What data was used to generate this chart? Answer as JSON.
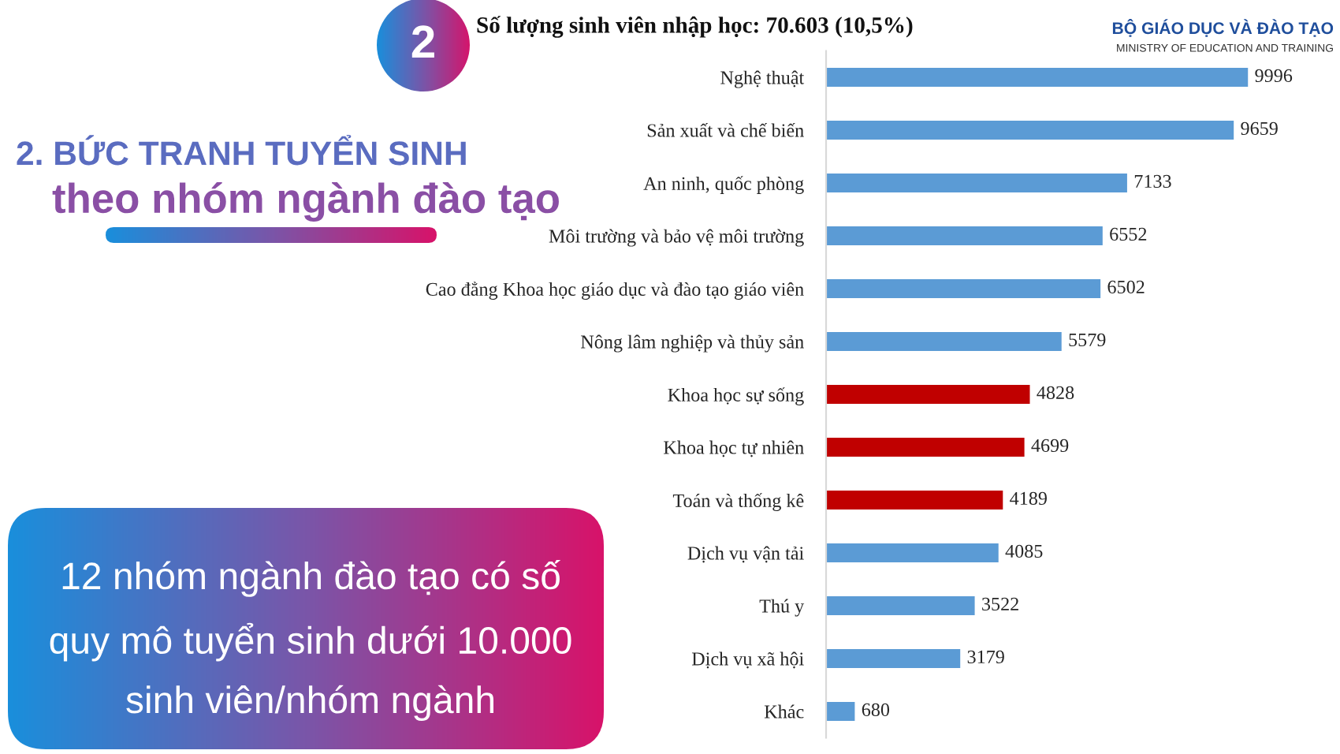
{
  "chart_data": {
    "type": "bar",
    "orientation": "horizontal",
    "title": "Số lượng sinh viên nhập học: 70.603 (10,5%)",
    "categories": [
      "Nghệ thuật",
      "Sản xuất và chế biến",
      "An ninh, quốc phòng",
      "Môi trường và bảo vệ môi trường",
      "Cao đẳng Khoa học giáo dục và đào tạo giáo viên",
      "Nông lâm nghiệp và thủy sản",
      "Khoa học sự sống",
      "Khoa học tự nhiên",
      "Toán và thống kê",
      "Dịch vụ vận tải",
      "Thú y",
      "Dịch vụ xã hội",
      "Khác"
    ],
    "values": [
      9996,
      9659,
      7133,
      6552,
      6502,
      5579,
      4828,
      4699,
      4189,
      4085,
      3522,
      3179,
      680
    ],
    "colors": [
      "#5b9bd5",
      "#5b9bd5",
      "#5b9bd5",
      "#5b9bd5",
      "#5b9bd5",
      "#5b9bd5",
      "#c00000",
      "#c00000",
      "#c00000",
      "#5b9bd5",
      "#5b9bd5",
      "#5b9bd5",
      "#5b9bd5"
    ],
    "tick_labels": "y",
    "data_labels": true,
    "grid": false,
    "annotations": [
      "2",
      "2. BỨC TRANH TUYỂN SINH",
      "theo nhóm ngành đào tạo",
      "12 nhóm ngành đào tạo có số\nquy mô tuyển sinh dưới 10.000\nsinh viên/nhóm ngành",
      "BỘ GIÁO DỤC VÀ ĐÀO TẠO",
      "MINISTRY OF EDUCATION AND TRAINING"
    ]
  }
}
